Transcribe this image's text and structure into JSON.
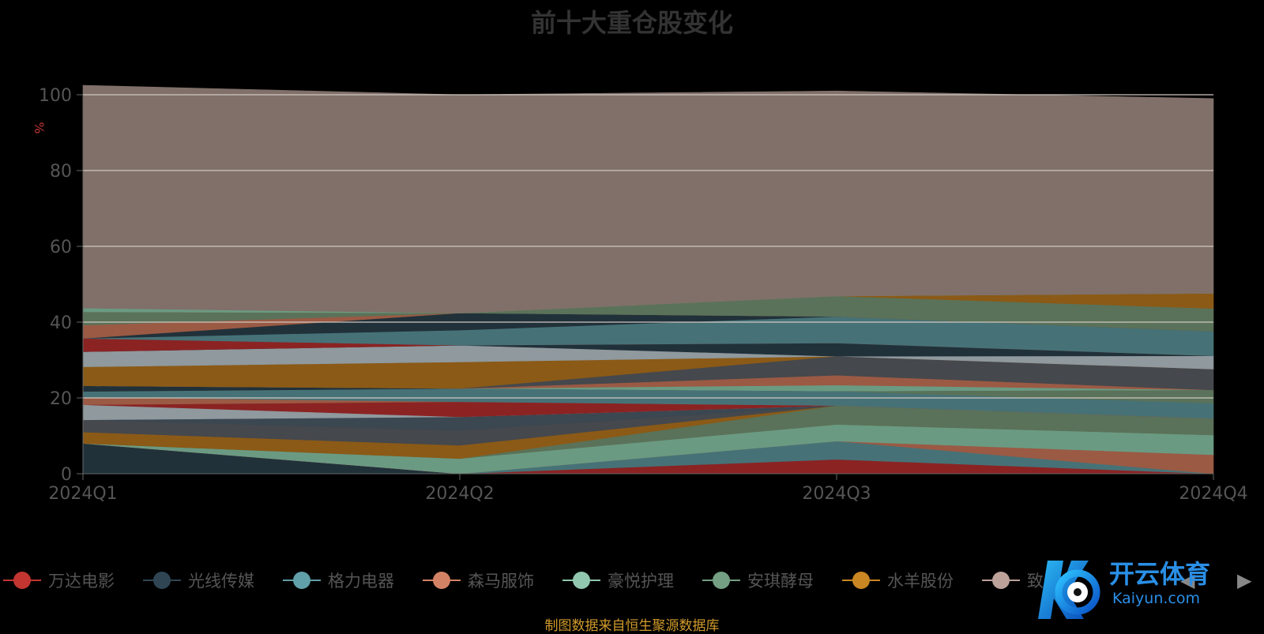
{
  "chart_data": {
    "type": "area",
    "stacked": true,
    "title": "前十大重仓股变化",
    "ylabel": "%",
    "xlabel": "",
    "ylim": [
      0,
      100
    ],
    "yticks": [
      0,
      20,
      40,
      60,
      80,
      100
    ],
    "grid": true,
    "categories": [
      "2024Q1",
      "2024Q2",
      "2024Q3",
      "2024Q4"
    ],
    "legend_position": "bottom",
    "series": [
      {
        "name": "",
        "color": "#21313a",
        "values": [
          8,
          0,
          0,
          0
        ]
      },
      {
        "name": "",
        "color": "#8b2323",
        "values": [
          0,
          0,
          3.8,
          0
        ]
      },
      {
        "name": "",
        "color": "#467277",
        "values": [
          0,
          0,
          4.8,
          0
        ]
      },
      {
        "name": "",
        "color": "#9b5a44",
        "values": [
          0,
          0,
          0,
          5
        ]
      },
      {
        "name": "",
        "color": "#6b9a82",
        "values": [
          0,
          4,
          4.4,
          5.2
        ]
      },
      {
        "name": "",
        "color": "#5a7259",
        "values": [
          0,
          0,
          5,
          4.4
        ]
      },
      {
        "name": "",
        "color": "#8b5a17",
        "values": [
          3,
          3.5,
          0,
          0
        ]
      },
      {
        "name": "",
        "color": "#45484d",
        "values": [
          3.2,
          4,
          0,
          0
        ]
      },
      {
        "name": "",
        "color": "#3b4751",
        "values": [
          0,
          3.5,
          0,
          0
        ]
      },
      {
        "name": "",
        "color": "#8f999e",
        "values": [
          4,
          0,
          0,
          0
        ]
      },
      {
        "name": "",
        "color": "#8b2323",
        "values": [
          0,
          4,
          0,
          0
        ]
      },
      {
        "name": "",
        "color": "#9b5a44",
        "values": [
          2,
          0,
          0,
          0
        ]
      },
      {
        "name": "",
        "color": "#467277",
        "values": [
          1.5,
          3.5,
          3.8,
          4
        ]
      },
      {
        "name": "",
        "color": "#5a7259",
        "values": [
          0,
          0,
          0,
          3.5
        ]
      },
      {
        "name": "",
        "color": "#21313a",
        "values": [
          1.5,
          0,
          0,
          0
        ]
      },
      {
        "name": "",
        "color": "#6b9a82",
        "values": [
          0,
          0,
          1.6,
          0
        ]
      },
      {
        "name": "",
        "color": "#9b5a44",
        "values": [
          0,
          0,
          2.6,
          0
        ]
      },
      {
        "name": "",
        "color": "#45484d",
        "values": [
          0,
          0,
          5,
          5.5
        ]
      },
      {
        "name": "",
        "color": "#8b5a17",
        "values": [
          5,
          7,
          0,
          0
        ]
      },
      {
        "name": "",
        "color": "#8f999e",
        "values": [
          4,
          4.4,
          0,
          3.5
        ]
      },
      {
        "name": "",
        "color": "#21313a",
        "values": [
          0,
          0,
          3.5,
          0
        ]
      },
      {
        "name": "",
        "color": "#8b2323",
        "values": [
          3.5,
          0,
          0,
          0
        ]
      },
      {
        "name": "",
        "color": "#467277",
        "values": [
          0,
          4,
          7,
          6.5
        ]
      },
      {
        "name": "",
        "color": "#21313a",
        "values": [
          0,
          4.5,
          0,
          0
        ]
      },
      {
        "name": "",
        "color": "#9b5a44",
        "values": [
          3.5,
          0,
          0,
          0
        ]
      },
      {
        "name": "",
        "color": "#5a7259",
        "values": [
          3.5,
          0,
          5.4,
          6
        ]
      },
      {
        "name": "",
        "color": "#8b5a17",
        "values": [
          0,
          0,
          0,
          4
        ]
      },
      {
        "name": "",
        "color": "#6b9a82",
        "values": [
          1,
          0,
          0,
          0
        ]
      },
      {
        "name": "",
        "color": "#807069",
        "values": [
          58.8,
          57.6,
          54.1,
          51.4
        ]
      }
    ],
    "legend": [
      {
        "label": "万达电影",
        "color": "#c23531"
      },
      {
        "label": "光线传媒",
        "color": "#2f4554"
      },
      {
        "label": "格力电器",
        "color": "#61a0a8"
      },
      {
        "label": "森马服饰",
        "color": "#d48265"
      },
      {
        "label": "豪悦护理",
        "color": "#91c7ae"
      },
      {
        "label": "安琪酵母",
        "color": "#749f83"
      },
      {
        "label": "水羊股份",
        "color": "#ca8622"
      },
      {
        "label": "致",
        "color": "#bda29a"
      }
    ]
  },
  "source_note": "制图数据来自恒生聚源数据库",
  "watermark": {
    "text_cn": "开云体育",
    "text_en": "Kaiyun.com"
  },
  "legend_nav": {
    "prev": "◀",
    "next": "▶"
  }
}
